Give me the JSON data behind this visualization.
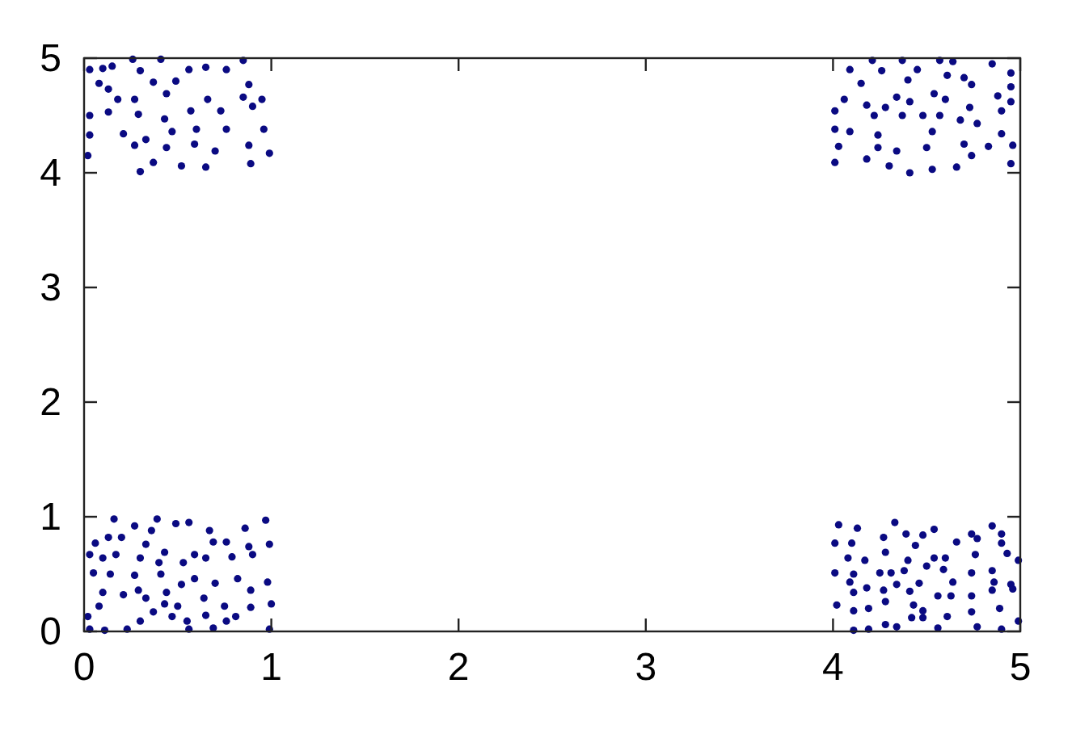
{
  "chart_data": {
    "type": "scatter",
    "xlim": [
      0,
      5
    ],
    "ylim": [
      0,
      5
    ],
    "xticks": [
      0,
      1,
      2,
      3,
      4,
      5
    ],
    "yticks": [
      0,
      1,
      2,
      3,
      4,
      5
    ],
    "grid": false,
    "marker": "circle",
    "series": [
      {
        "color": "#0a0a82",
        "x": [
          0.03,
          0.1,
          0.15,
          0.26,
          0.3,
          0.41,
          0.56,
          0.65,
          0.76,
          0.85,
          0.08,
          0.13,
          0.37,
          0.49,
          0.88,
          0.18,
          0.27,
          0.44,
          0.66,
          0.85,
          0.95,
          0.03,
          0.13,
          0.29,
          0.43,
          0.57,
          0.73,
          0.9,
          0.03,
          0.21,
          0.33,
          0.47,
          0.6,
          0.76,
          0.96,
          0.02,
          0.27,
          0.44,
          0.59,
          0.7,
          0.88,
          0.99,
          0.3,
          0.37,
          0.52,
          0.65,
          0.89,
          4.09,
          4.21,
          4.26,
          4.37,
          4.45,
          4.57,
          4.64,
          4.85,
          4.95,
          4.15,
          4.4,
          4.61,
          4.7,
          4.74,
          4.95,
          4.06,
          4.18,
          4.28,
          4.34,
          4.41,
          4.54,
          4.6,
          4.88,
          4.95,
          4.01,
          4.22,
          4.37,
          4.48,
          4.57,
          4.73,
          4.9,
          4.01,
          4.09,
          4.24,
          4.53,
          4.68,
          4.77,
          4.9,
          4.03,
          4.24,
          4.34,
          4.5,
          4.7,
          4.83,
          4.96,
          4.01,
          4.18,
          4.3,
          4.41,
          4.53,
          4.66,
          4.74,
          4.95,
          0.16,
          0.27,
          0.36,
          0.39,
          0.49,
          0.56,
          0.67,
          0.86,
          0.97,
          0.06,
          0.13,
          0.2,
          0.33,
          0.43,
          0.59,
          0.69,
          0.76,
          0.88,
          0.99,
          0.03,
          0.1,
          0.17,
          0.3,
          0.4,
          0.53,
          0.65,
          0.79,
          0.9,
          0.05,
          0.14,
          0.27,
          0.41,
          0.59,
          0.7,
          0.82,
          0.98,
          0.1,
          0.21,
          0.29,
          0.44,
          0.52,
          0.89,
          0.08,
          0.33,
          0.43,
          0.5,
          0.64,
          0.75,
          0.89,
          1.0,
          0.02,
          0.3,
          0.37,
          0.47,
          0.55,
          0.65,
          0.76,
          0.81,
          0.03,
          0.11,
          0.23,
          0.56,
          0.69,
          0.99,
          4.03,
          4.13,
          4.33,
          4.39,
          4.54,
          4.74,
          4.85,
          4.9,
          4.01,
          4.1,
          4.27,
          4.44,
          4.48,
          4.66,
          4.77,
          4.9,
          4.08,
          4.17,
          4.28,
          4.4,
          4.54,
          4.6,
          4.76,
          4.93,
          4.99,
          4.01,
          4.11,
          4.25,
          4.31,
          4.38,
          4.5,
          4.59,
          4.74,
          4.85,
          4.09,
          4.18,
          4.34,
          4.46,
          4.64,
          4.86,
          4.95,
          4.11,
          4.27,
          4.41,
          4.56,
          4.63,
          4.74,
          4.85,
          4.96,
          4.02,
          4.11,
          4.19,
          4.28,
          4.43,
          4.48,
          4.61,
          4.74,
          4.89,
          4.99,
          4.11,
          4.19,
          4.28,
          4.34,
          4.42,
          4.48,
          4.56,
          4.77,
          4.9
        ],
        "values": [
          4.9,
          4.91,
          4.93,
          4.99,
          4.89,
          4.99,
          4.9,
          4.92,
          4.9,
          4.98,
          4.78,
          4.73,
          4.79,
          4.8,
          4.77,
          4.64,
          4.64,
          4.69,
          4.64,
          4.66,
          4.64,
          4.5,
          4.53,
          4.51,
          4.47,
          4.54,
          4.54,
          4.58,
          4.33,
          4.34,
          4.29,
          4.36,
          4.38,
          4.38,
          4.38,
          4.15,
          4.24,
          4.22,
          4.25,
          4.19,
          4.24,
          4.17,
          4.01,
          4.09,
          4.06,
          4.05,
          4.08,
          4.9,
          4.98,
          4.89,
          4.98,
          4.9,
          4.98,
          4.97,
          4.95,
          4.87,
          4.78,
          4.81,
          4.85,
          4.83,
          4.77,
          4.75,
          4.64,
          4.59,
          4.57,
          4.66,
          4.62,
          4.69,
          4.64,
          4.67,
          4.62,
          4.54,
          4.5,
          4.5,
          4.5,
          4.5,
          4.57,
          4.54,
          4.38,
          4.36,
          4.33,
          4.36,
          4.46,
          4.43,
          4.34,
          4.23,
          4.22,
          4.19,
          4.22,
          4.25,
          4.23,
          4.24,
          4.09,
          4.12,
          4.06,
          4.0,
          4.03,
          4.05,
          4.15,
          4.08,
          0.98,
          0.92,
          0.88,
          0.98,
          0.94,
          0.95,
          0.88,
          0.9,
          0.97,
          0.77,
          0.82,
          0.82,
          0.76,
          0.69,
          0.67,
          0.78,
          0.78,
          0.74,
          0.76,
          0.67,
          0.64,
          0.67,
          0.64,
          0.6,
          0.6,
          0.64,
          0.65,
          0.67,
          0.51,
          0.5,
          0.49,
          0.5,
          0.46,
          0.42,
          0.46,
          0.43,
          0.34,
          0.32,
          0.36,
          0.34,
          0.41,
          0.36,
          0.22,
          0.29,
          0.24,
          0.22,
          0.29,
          0.22,
          0.21,
          0.24,
          0.13,
          0.09,
          0.17,
          0.13,
          0.09,
          0.14,
          0.09,
          0.13,
          0.02,
          0.01,
          0.02,
          0.02,
          0.03,
          0.02,
          0.93,
          0.9,
          0.95,
          0.85,
          0.89,
          0.85,
          0.92,
          0.85,
          0.77,
          0.77,
          0.82,
          0.75,
          0.84,
          0.78,
          0.81,
          0.77,
          0.64,
          0.62,
          0.69,
          0.62,
          0.64,
          0.64,
          0.67,
          0.68,
          0.62,
          0.51,
          0.5,
          0.51,
          0.51,
          0.53,
          0.57,
          0.54,
          0.51,
          0.53,
          0.43,
          0.38,
          0.41,
          0.42,
          0.43,
          0.43,
          0.41,
          0.34,
          0.36,
          0.35,
          0.31,
          0.31,
          0.31,
          0.36,
          0.37,
          0.23,
          0.18,
          0.2,
          0.26,
          0.23,
          0.18,
          0.13,
          0.17,
          0.2,
          0.09,
          0.01,
          0.02,
          0.06,
          0.04,
          0.12,
          0.12,
          0.03,
          0.04,
          0.02
        ]
      }
    ]
  }
}
